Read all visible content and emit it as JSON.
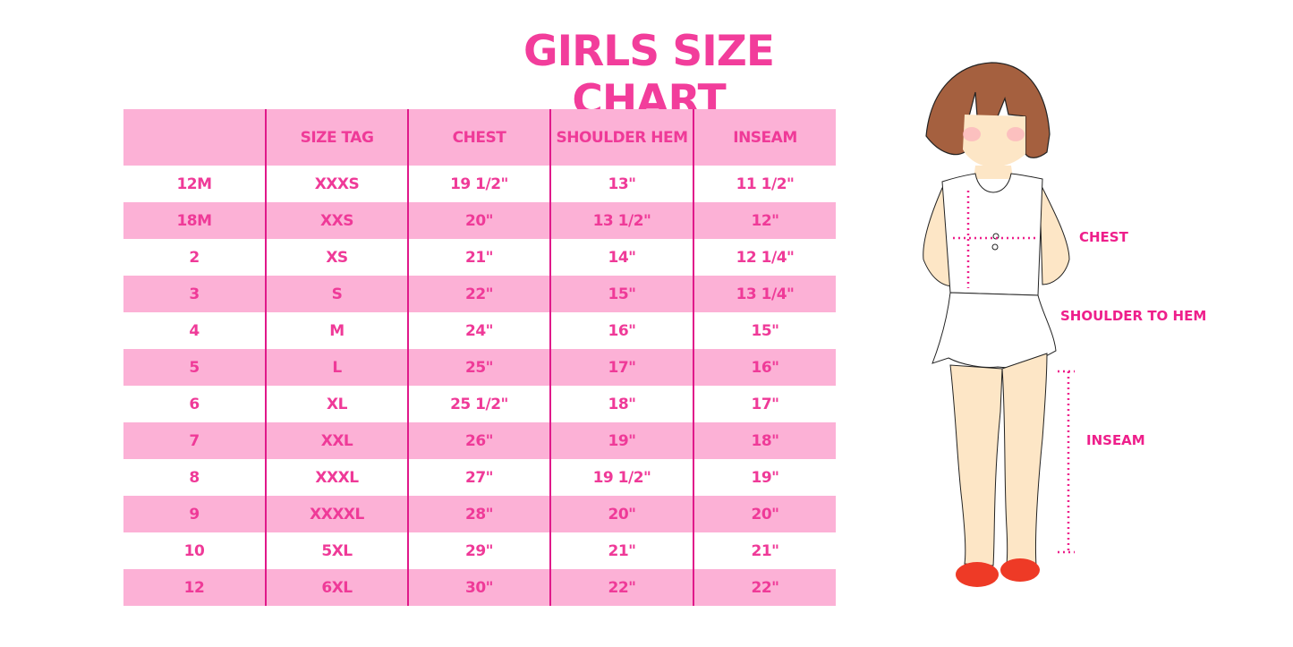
{
  "title": "GIRLS SIZE CHART",
  "table": {
    "headers": [
      "",
      "SIZE TAG",
      "CHEST",
      "SHOULDER HEM",
      "INSEAM"
    ],
    "rows": [
      [
        "12M",
        "XXXS",
        "19 1/2\"",
        "13\"",
        "11 1/2\""
      ],
      [
        "18M",
        "XXS",
        "20\"",
        "13 1/2\"",
        "12\""
      ],
      [
        "2",
        "XS",
        "21\"",
        "14\"",
        "12 1/4\""
      ],
      [
        "3",
        "S",
        "22\"",
        "15\"",
        "13 1/4\""
      ],
      [
        "4",
        "M",
        "24\"",
        "16\"",
        "15\""
      ],
      [
        "5",
        "L",
        "25\"",
        "17\"",
        "16\""
      ],
      [
        "6",
        "XL",
        "25 1/2\"",
        "18\"",
        "17\""
      ],
      [
        "7",
        "XXL",
        "26\"",
        "19\"",
        "18\""
      ],
      [
        "8",
        "XXXL",
        "27\"",
        "19 1/2\"",
        "19\""
      ],
      [
        "9",
        "XXXXL",
        "28\"",
        "20\"",
        "20\""
      ],
      [
        "10",
        "5XL",
        "29\"",
        "21\"",
        "21\""
      ],
      [
        "12",
        "6XL",
        "30\"",
        "22\"",
        "22\""
      ]
    ]
  },
  "illustration": {
    "labels": {
      "chest": "CHEST",
      "shoulder_to_hem": "SHOULDER TO HEM",
      "inseam": "INSEAM"
    }
  },
  "colors": {
    "accent": "#ef3a98",
    "row_pink": "#fcb1d6",
    "divider": "#e0198a"
  }
}
